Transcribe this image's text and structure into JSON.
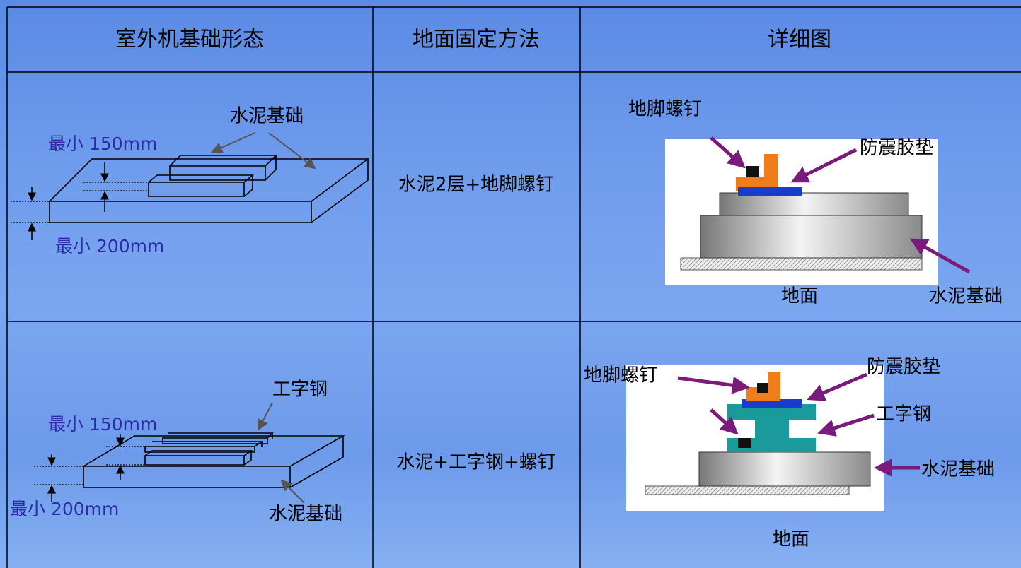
{
  "table": {
    "header": [
      "室外机基础形态",
      "地面固定方法",
      "详细图"
    ],
    "rows": [
      {
        "form_labels": [
          "水泥基础",
          "最小 150mm",
          "最小 200mm"
        ],
        "method": "水泥2层+地脚螺钉",
        "detail_labels": [
          "地脚螺钉",
          "防震胶垫",
          "地面",
          "水泥基础"
        ]
      },
      {
        "form_labels": [
          "工字钢",
          "最小 150mm",
          "最小 200mm",
          "水泥基础"
        ],
        "method": "水泥+工字钢+螺钉",
        "detail_labels": [
          "地脚螺钉",
          "防震胶垫",
          "工字钢",
          "水泥基础",
          "地面"
        ]
      }
    ]
  }
}
